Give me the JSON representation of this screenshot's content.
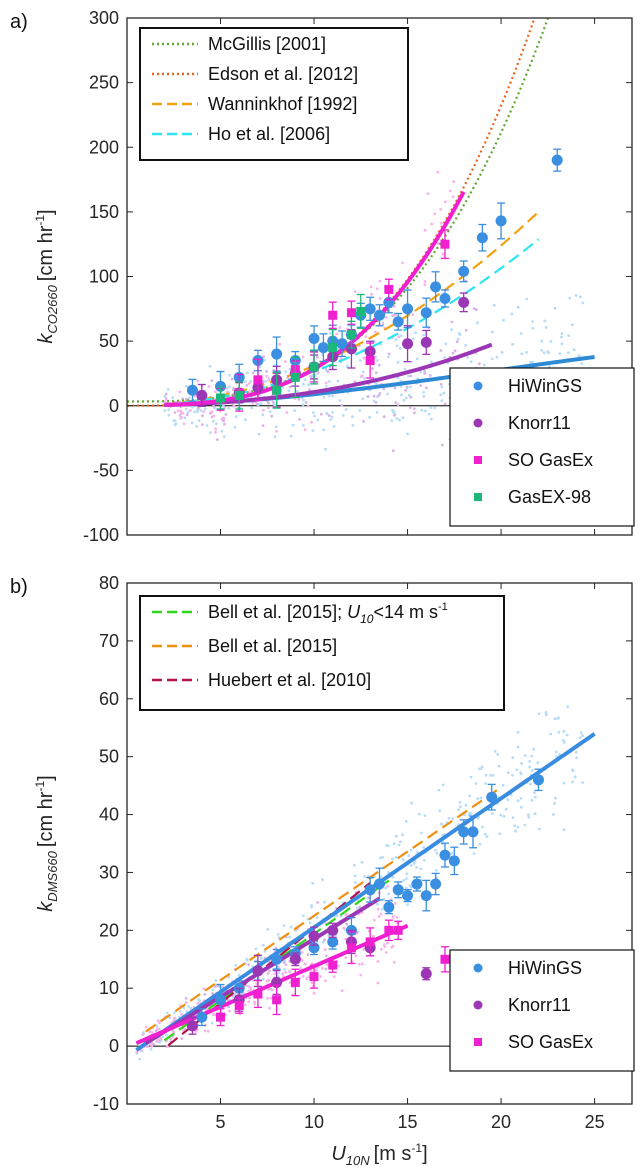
{
  "chart_data": [
    {
      "panel_label": "a)",
      "type": "scatter",
      "xlim": [
        0,
        27
      ],
      "ylim": [
        -100,
        300
      ],
      "yticks": [
        "-100",
        "-50",
        "0",
        "50",
        "100",
        "150",
        "200",
        "250",
        "300"
      ],
      "ylabel": {
        "main": "k",
        "sub": "CO2660",
        "unit": "[cm hr",
        "unit_sup": "-1",
        "unit_end": "]"
      },
      "zero_line": true,
      "legend_lines": [
        {
          "name": "McGillis [2001]",
          "color": "#5fa832",
          "style": "dotted"
        },
        {
          "name": "Edson et al. [2012]",
          "color": "#e8641e",
          "style": "dotted"
        },
        {
          "name": "Wanninkhof [1992]",
          "color": "#f2a20f",
          "style": "dashed"
        },
        {
          "name": "Ho et al. [2006]",
          "color": "#2de5f0",
          "style": "dashed"
        }
      ],
      "legend_markers": [
        {
          "name": "HiWinGS",
          "color": "#3b8fe0",
          "marker": "circle"
        },
        {
          "name": "Knorr11",
          "color": "#9b36b5",
          "marker": "circle"
        },
        {
          "name": "SO GasEx",
          "color": "#f01fd0",
          "marker": "square"
        },
        {
          "name": "GasEX-98",
          "color": "#1bb87a",
          "marker": "square"
        }
      ],
      "series_binned": [
        {
          "name": "HiWinGS",
          "color": "#3b8fe0",
          "points": [
            [
              3.5,
              12
            ],
            [
              5,
              15
            ],
            [
              6,
              22
            ],
            [
              7,
              35
            ],
            [
              8,
              40
            ],
            [
              9,
              35
            ],
            [
              10,
              52
            ],
            [
              10.5,
              45
            ],
            [
              11,
              50
            ],
            [
              11.5,
              48
            ],
            [
              12,
              55
            ],
            [
              12.5,
              70
            ],
            [
              13,
              75
            ],
            [
              13.5,
              70
            ],
            [
              14,
              80
            ],
            [
              14.5,
              65
            ],
            [
              15,
              75
            ],
            [
              16,
              72
            ],
            [
              16.5,
              92
            ],
            [
              17,
              83
            ],
            [
              18,
              104
            ],
            [
              19,
              130
            ],
            [
              20,
              143
            ],
            [
              23,
              190
            ]
          ]
        },
        {
          "name": "Knorr11",
          "color": "#9b36b5",
          "points": [
            [
              4,
              8
            ],
            [
              6,
              10
            ],
            [
              7,
              14
            ],
            [
              8,
              20
            ],
            [
              9,
              25
            ],
            [
              10,
              30
            ],
            [
              11,
              38
            ],
            [
              12,
              44
            ],
            [
              13,
              42
            ],
            [
              15,
              48
            ],
            [
              16,
              49
            ],
            [
              18,
              80
            ]
          ]
        },
        {
          "name": "SO GasEx",
          "color": "#f01fd0",
          "points": [
            [
              5,
              5
            ],
            [
              6,
              10
            ],
            [
              7,
              20
            ],
            [
              8,
              12
            ],
            [
              9,
              28
            ],
            [
              10,
              30
            ],
            [
              11,
              70
            ],
            [
              12,
              72
            ],
            [
              13,
              35
            ],
            [
              14,
              90
            ],
            [
              17,
              125
            ]
          ]
        },
        {
          "name": "GasEX-98",
          "color": "#1bb87a",
          "points": [
            [
              5,
              6
            ],
            [
              6,
              8
            ],
            [
              8,
              12
            ],
            [
              9,
              22
            ],
            [
              10,
              30
            ],
            [
              11,
              45
            ],
            [
              12,
              55
            ],
            [
              12.5,
              73
            ]
          ]
        }
      ],
      "fits": [
        {
          "name": "HiWinGS",
          "color": "#2f8ad6",
          "x": [
            2,
            25
          ],
          "c": [
            0.23,
            0,
            0.105,
            -0.0018
          ]
        },
        {
          "name": "Knorr11",
          "color": "#9b36b5",
          "x": [
            2,
            19.5
          ],
          "c": [
            0.234,
            0,
            0.082,
            0.00214
          ]
        },
        {
          "name": "SO GasEx",
          "color": "#f01fd0",
          "x": [
            2,
            18
          ],
          "c": [
            0.5,
            0,
            -0.0074,
            0.0287
          ]
        }
      ],
      "ref_lines": [
        {
          "name": "McGillis [2001]",
          "x": [
            0,
            24
          ],
          "c": [
            3.3,
            0,
            0,
            0.026
          ]
        },
        {
          "name": "Edson et al. [2012]",
          "x": [
            0,
            24
          ],
          "c": [
            0,
            0,
            0,
            0.029
          ]
        },
        {
          "name": "Wanninkhof [1992]",
          "x": [
            2,
            22
          ],
          "c": [
            0,
            0,
            0.31,
            0
          ]
        },
        {
          "name": "Ho et al. [2006]",
          "x": [
            2,
            22
          ],
          "c": [
            0,
            0,
            0.266,
            0
          ]
        }
      ]
    },
    {
      "panel_label": "b)",
      "type": "scatter",
      "xlim": [
        0,
        27
      ],
      "ylim": [
        -10,
        80
      ],
      "yticks": [
        "-10",
        "0",
        "10",
        "20",
        "30",
        "40",
        "50",
        "60",
        "70",
        "80"
      ],
      "xticks": [
        "5",
        "10",
        "15",
        "20",
        "25"
      ],
      "xtick_values": [
        5,
        10,
        15,
        20,
        25
      ],
      "ylabel": {
        "main": "k",
        "sub": "DMS660",
        "unit": "[cm hr",
        "unit_sup": "-1",
        "unit_end": "]"
      },
      "xlabel": {
        "main": "U",
        "sub": "10N",
        "unit": "[m s",
        "unit_sup": "-1",
        "unit_end": "]"
      },
      "zero_line": true,
      "legend_lines": [
        {
          "name_parts": [
            "Bell et al. [2015]; ",
            "U",
            "10",
            "<14 m s",
            "-1"
          ],
          "color": "#2fd61a",
          "style": "dashed"
        },
        {
          "name": "Bell et al. [2015]",
          "color": "#f0900f",
          "style": "dashed"
        },
        {
          "name": "Huebert et al. [2010]",
          "color": "#b3124a",
          "style": "dashed"
        }
      ],
      "legend_markers": [
        {
          "name": "HiWinGS",
          "color": "#3b8fe0",
          "marker": "circle"
        },
        {
          "name": "Knorr11",
          "color": "#9b36b5",
          "marker": "circle"
        },
        {
          "name": "SO GasEx",
          "color": "#f01fd0",
          "marker": "square"
        }
      ],
      "series_binned": [
        {
          "name": "HiWinGS",
          "color": "#3b8fe0",
          "points": [
            [
              4,
              5
            ],
            [
              5,
              8
            ],
            [
              6,
              10
            ],
            [
              7,
              13
            ],
            [
              8,
              15
            ],
            [
              9,
              16
            ],
            [
              10,
              17
            ],
            [
              11,
              18
            ],
            [
              12,
              20
            ],
            [
              13,
              27
            ],
            [
              13.5,
              28
            ],
            [
              14,
              24
            ],
            [
              14.5,
              27
            ],
            [
              15,
              26
            ],
            [
              15.5,
              28
            ],
            [
              16,
              26
            ],
            [
              16.5,
              28
            ],
            [
              17,
              33
            ],
            [
              17.5,
              32
            ],
            [
              18,
              37
            ],
            [
              18.5,
              37
            ],
            [
              19.5,
              43
            ],
            [
              22,
              46
            ]
          ]
        },
        {
          "name": "Knorr11",
          "color": "#9b36b5",
          "points": [
            [
              3.5,
              3.5
            ],
            [
              6,
              8
            ],
            [
              7,
              13
            ],
            [
              8,
              11
            ],
            [
              9,
              15
            ],
            [
              10,
              19
            ],
            [
              11,
              20
            ],
            [
              12,
              18
            ],
            [
              13,
              17
            ],
            [
              16,
              12.5
            ]
          ]
        },
        {
          "name": "SO GasEx",
          "color": "#f01fd0",
          "points": [
            [
              5,
              5
            ],
            [
              6,
              7
            ],
            [
              7,
              9
            ],
            [
              8,
              8
            ],
            [
              9,
              11
            ],
            [
              10,
              12
            ],
            [
              11,
              14
            ],
            [
              12,
              17
            ],
            [
              13,
              18
            ],
            [
              14,
              20
            ],
            [
              14.5,
              20
            ],
            [
              17,
              15
            ]
          ]
        }
      ],
      "fits": [
        {
          "name": "HiWinGS",
          "color": "#3a8ce0",
          "x": [
            0.5,
            25
          ],
          "c": [
            -1.8,
            2.23
          ]
        },
        {
          "name": "Knorr11",
          "color": "#9b36b5",
          "x": [
            1,
            13.5
          ],
          "c": [
            -1.5,
            2.0
          ]
        },
        {
          "name": "SO GasEx",
          "color": "#f01fd0",
          "x": [
            0.5,
            15
          ],
          "c": [
            -0.2,
            1.4
          ]
        }
      ],
      "ref_lines": [
        {
          "name": "Bell et al. [2015]; U10<14 m s-1",
          "x": [
            2,
            14
          ],
          "c": [
            -3.6,
            2.3
          ]
        },
        {
          "name": "Bell et al. [2015]",
          "x": [
            1,
            20
          ],
          "c": [
            0.3,
            2.22
          ]
        },
        {
          "name": "Huebert et al. [2010]",
          "x": [
            2.2,
            13
          ],
          "c": [
            -5.6,
            2.6
          ]
        }
      ]
    }
  ]
}
